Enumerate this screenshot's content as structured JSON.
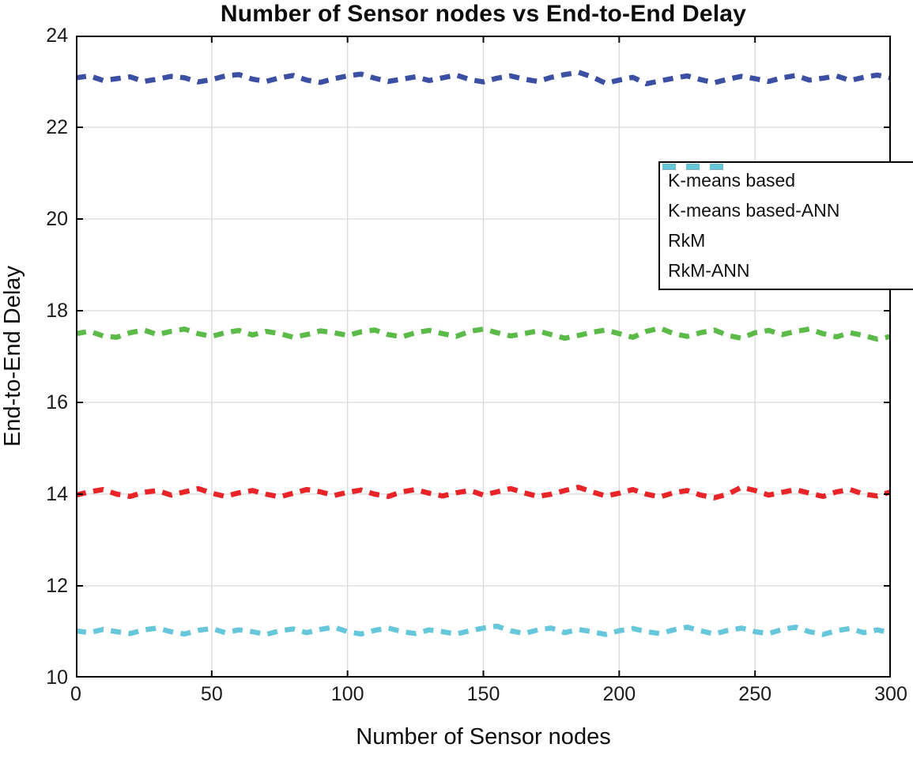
{
  "chart_data": {
    "type": "line",
    "title": "Number of Sensor nodes vs End-to-End Delay",
    "xlabel": "Number of Sensor nodes",
    "ylabel": "End-to-End Delay",
    "xlim": [
      0,
      300
    ],
    "ylim": [
      10,
      24
    ],
    "xticks": [
      0,
      50,
      100,
      150,
      200,
      250,
      300
    ],
    "yticks": [
      10,
      12,
      14,
      16,
      18,
      20,
      22,
      24
    ],
    "grid": true,
    "grid_color": "#d9d9d9",
    "axis_color": "#000000",
    "line_style": "dashed",
    "legend_position": "upper right",
    "x": [
      0,
      5,
      10,
      15,
      20,
      25,
      30,
      35,
      40,
      45,
      50,
      55,
      60,
      65,
      70,
      75,
      80,
      85,
      90,
      95,
      100,
      105,
      110,
      115,
      120,
      125,
      130,
      135,
      140,
      145,
      150,
      155,
      160,
      165,
      170,
      175,
      180,
      185,
      190,
      195,
      200,
      205,
      210,
      215,
      220,
      225,
      230,
      235,
      240,
      245,
      250,
      255,
      260,
      265,
      270,
      275,
      280,
      285,
      290,
      295,
      300
    ],
    "series": [
      {
        "name": "K-means based",
        "color": "#3b4fa3",
        "approx_mean": 23.1,
        "y": [
          23.08,
          23.12,
          23.02,
          23.06,
          23.1,
          23.0,
          23.05,
          23.11,
          23.08,
          22.99,
          23.04,
          23.12,
          23.15,
          23.05,
          23.0,
          23.08,
          23.13,
          23.03,
          22.98,
          23.06,
          23.12,
          23.16,
          23.07,
          23.0,
          23.05,
          23.1,
          23.02,
          23.08,
          23.14,
          23.04,
          22.99,
          23.07,
          23.12,
          23.05,
          23.0,
          23.09,
          23.15,
          23.2,
          23.1,
          22.96,
          23.03,
          23.09,
          22.95,
          23.01,
          23.07,
          23.12,
          23.04,
          22.97,
          23.05,
          23.11,
          23.06,
          23.0,
          23.08,
          23.13,
          23.03,
          23.07,
          23.12,
          23.02,
          23.09,
          23.14,
          23.08
        ]
      },
      {
        "name": "K-means based-ANN",
        "color": "#5cbb48",
        "approx_mean": 17.5,
        "y": [
          17.5,
          17.55,
          17.45,
          17.42,
          17.52,
          17.58,
          17.48,
          17.55,
          17.6,
          17.5,
          17.44,
          17.52,
          17.57,
          17.47,
          17.55,
          17.5,
          17.42,
          17.48,
          17.56,
          17.52,
          17.46,
          17.54,
          17.58,
          17.48,
          17.43,
          17.52,
          17.57,
          17.5,
          17.44,
          17.55,
          17.6,
          17.52,
          17.45,
          17.5,
          17.56,
          17.48,
          17.4,
          17.46,
          17.53,
          17.58,
          17.5,
          17.42,
          17.55,
          17.62,
          17.5,
          17.44,
          17.52,
          17.58,
          17.46,
          17.4,
          17.52,
          17.57,
          17.48,
          17.55,
          17.6,
          17.5,
          17.43,
          17.52,
          17.46,
          17.38,
          17.44
        ]
      },
      {
        "name": "RkM",
        "color": "#e92428",
        "approx_mean": 14.0,
        "y": [
          13.98,
          14.05,
          14.1,
          14.0,
          13.95,
          14.04,
          14.08,
          13.98,
          14.05,
          14.12,
          14.02,
          13.95,
          14.03,
          14.08,
          14.0,
          13.94,
          14.02,
          14.1,
          14.05,
          13.97,
          14.04,
          14.09,
          14.0,
          13.95,
          14.05,
          14.1,
          14.02,
          13.96,
          14.03,
          14.08,
          13.98,
          14.05,
          14.12,
          14.03,
          13.95,
          14.0,
          14.08,
          14.15,
          14.05,
          13.96,
          14.02,
          14.1,
          14.0,
          13.94,
          14.03,
          14.08,
          13.98,
          13.92,
          14.0,
          14.15,
          14.08,
          13.98,
          14.04,
          14.1,
          14.02,
          13.95,
          14.05,
          14.1,
          14.0,
          13.96,
          14.05
        ]
      },
      {
        "name": "RkM-ANN",
        "color": "#66c6da",
        "approx_mean": 11.0,
        "y": [
          11.02,
          10.98,
          11.05,
          11.0,
          10.96,
          11.04,
          11.08,
          11.0,
          10.95,
          11.03,
          11.07,
          10.98,
          11.04,
          11.0,
          10.94,
          11.02,
          11.06,
          10.98,
          11.05,
          11.1,
          11.0,
          10.95,
          11.03,
          11.08,
          11.0,
          10.96,
          11.04,
          11.0,
          10.95,
          11.02,
          11.08,
          11.12,
          11.02,
          10.96,
          11.04,
          11.08,
          10.98,
          11.05,
          11.0,
          10.94,
          11.02,
          11.07,
          11.0,
          10.96,
          11.04,
          11.1,
          11.02,
          10.95,
          11.03,
          11.08,
          11.0,
          10.96,
          11.05,
          11.1,
          11.0,
          10.94,
          11.02,
          11.07,
          10.98,
          11.04,
          10.98
        ]
      }
    ]
  }
}
